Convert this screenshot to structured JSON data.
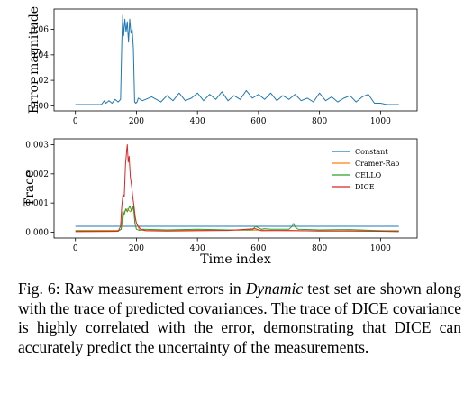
{
  "chart_data": [
    {
      "type": "line",
      "ylabel": "Error magnitude",
      "xlim": [
        -70,
        1120
      ],
      "ylim": [
        -0.004,
        0.076
      ],
      "xticks": [
        0,
        200,
        400,
        600,
        800,
        1000
      ],
      "yticks": [
        0.0,
        0.02,
        0.04,
        0.06
      ],
      "ytick_labels": [
        "0.00",
        "0.02",
        "0.04",
        "0.06"
      ],
      "series": [
        {
          "color": "#1f77b4",
          "x": [
            0,
            85,
            95,
            100,
            110,
            120,
            130,
            140,
            148,
            152,
            155,
            158,
            162,
            166,
            170,
            174,
            178,
            182,
            186,
            190,
            194,
            198,
            202,
            206,
            220,
            250,
            280,
            300,
            320,
            340,
            360,
            380,
            400,
            420,
            440,
            460,
            480,
            500,
            520,
            540,
            560,
            580,
            600,
            620,
            640,
            660,
            680,
            700,
            720,
            740,
            760,
            780,
            800,
            820,
            840,
            860,
            880,
            900,
            920,
            940,
            960,
            980,
            1000,
            1020,
            1040,
            1060
          ],
          "values": [
            0.001,
            0.001,
            0.004,
            0.002,
            0.004,
            0.002,
            0.005,
            0.003,
            0.005,
            0.05,
            0.071,
            0.055,
            0.068,
            0.058,
            0.066,
            0.05,
            0.068,
            0.057,
            0.06,
            0.045,
            0.003,
            0.002,
            0.003,
            0.006,
            0.004,
            0.007,
            0.003,
            0.008,
            0.004,
            0.01,
            0.004,
            0.006,
            0.01,
            0.004,
            0.009,
            0.005,
            0.011,
            0.004,
            0.008,
            0.005,
            0.012,
            0.006,
            0.009,
            0.005,
            0.01,
            0.004,
            0.008,
            0.005,
            0.009,
            0.004,
            0.006,
            0.003,
            0.01,
            0.004,
            0.007,
            0.003,
            0.006,
            0.008,
            0.003,
            0.007,
            0.009,
            0.002,
            0.002,
            0.001,
            0.001,
            0.001
          ]
        }
      ]
    },
    {
      "type": "line",
      "xlabel": "Time index",
      "ylabel": "Trace",
      "xlim": [
        -70,
        1120
      ],
      "ylim": [
        -0.0002,
        0.0032
      ],
      "xticks": [
        0,
        200,
        400,
        600,
        800,
        1000
      ],
      "yticks": [
        0.0,
        0.001,
        0.002,
        0.003
      ],
      "ytick_labels": [
        "0.000",
        "0.001",
        "0.002",
        "0.003"
      ],
      "legend": "top-right",
      "series": [
        {
          "name": "Constant",
          "color": "#1f77b4",
          "x": [
            0,
            1060
          ],
          "values": [
            0.0002,
            0.0002
          ]
        },
        {
          "name": "Cramer-Rao",
          "color": "#ff7f0e",
          "x": [
            0,
            140,
            150,
            160,
            170,
            180,
            190,
            200,
            210,
            230,
            600,
            720,
            1060
          ],
          "values": [
            6e-05,
            6e-05,
            0.0001,
            0.0007,
            0.0008,
            0.0007,
            0.0009,
            0.0003,
            8e-05,
            6e-05,
            7e-05,
            5e-05,
            5e-05
          ]
        },
        {
          "name": "CELLO",
          "color": "#2ca02c",
          "x": [
            0,
            140,
            150,
            155,
            160,
            165,
            170,
            178,
            185,
            190,
            195,
            200,
            210,
            220,
            300,
            400,
            500,
            580,
            590,
            600,
            610,
            620,
            640,
            700,
            710,
            715,
            720,
            730,
            800,
            900,
            1000,
            1060
          ],
          "values": [
            4e-05,
            4e-05,
            0.0001,
            0.0007,
            0.0006,
            0.0008,
            0.0007,
            0.0009,
            0.0007,
            0.0009,
            0.0003,
            0.0001,
            6e-05,
            0.0001,
            8e-05,
            0.0001,
            8e-05,
            8e-05,
            0.0002,
            0.00015,
            0.0001,
            0.00012,
            0.0001,
            0.0001,
            0.0002,
            0.0003,
            0.00018,
            0.0001,
            8e-05,
            9e-05,
            5e-05,
            4e-05
          ]
        },
        {
          "name": "DICE",
          "color": "#d62728",
          "x": [
            0,
            140,
            148,
            152,
            156,
            160,
            164,
            168,
            170,
            173,
            176,
            180,
            184,
            188,
            192,
            196,
            200,
            206,
            214,
            230,
            300,
            400,
            500,
            590,
            600,
            610,
            700,
            800,
            900,
            1000,
            1060
          ],
          "values": [
            2e-05,
            3e-05,
            0.0002,
            0.0009,
            0.0013,
            0.0012,
            0.0023,
            0.0028,
            0.003,
            0.0024,
            0.0026,
            0.0019,
            0.0016,
            0.0012,
            0.0009,
            0.0005,
            0.0003,
            0.0002,
            0.0001,
            5e-05,
            4e-05,
            5e-05,
            6e-05,
            0.00012,
            8e-05,
            5e-05,
            6e-05,
            4e-05,
            4e-05,
            3e-05,
            2e-05
          ]
        }
      ]
    }
  ],
  "caption": {
    "prefix": "Fig. 6: Raw measurement errors in ",
    "italic": "Dynamic",
    "rest": " test set are shown along with the trace of predicted covariances. The trace of DICE covariance is highly correlated with the error, demonstrating that DICE can accurately predict the uncertainty of the measurements."
  }
}
